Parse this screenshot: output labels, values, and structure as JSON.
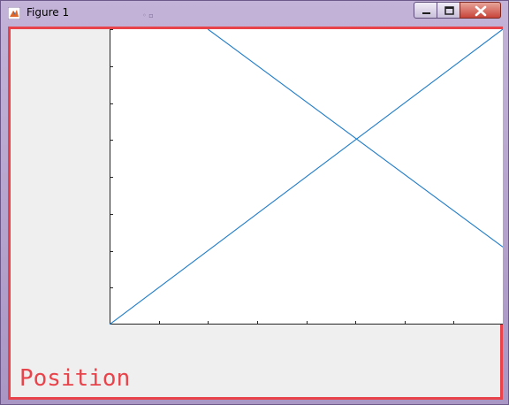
{
  "window": {
    "title": "Figure 1",
    "app_icon": "matlab-icon",
    "controls": [
      "minimize-icon",
      "maximize-icon",
      "close-icon"
    ]
  },
  "overlay": {
    "position_label": "Position",
    "highlight_color": "#e8434a"
  },
  "colors": {
    "line": "#1f7cc9",
    "figure_bg": "#efefef",
    "axes_bg": "#ffffff"
  },
  "chart_data": {
    "type": "line",
    "title": "",
    "xlabel": "",
    "ylabel": "",
    "xlim": [
      0,
      8
    ],
    "ylim": [
      0,
      8
    ],
    "x_tick_count": 9,
    "y_tick_count": 9,
    "show_tick_labels": false,
    "grid": false,
    "series": [
      {
        "values": [
          [
            0,
            0
          ],
          [
            8,
            8
          ]
        ]
      },
      {
        "values": [
          [
            2,
            8
          ],
          [
            8,
            2.1
          ]
        ]
      }
    ]
  }
}
